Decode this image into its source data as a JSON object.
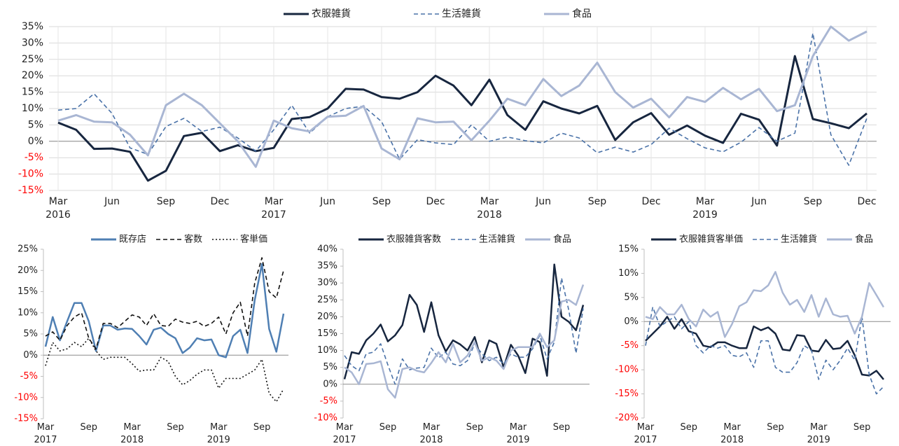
{
  "chart_data": [
    {
      "type": "line",
      "categories": [
        "Mar 2016",
        null,
        null,
        "Jun",
        null,
        null,
        "Sep",
        null,
        null,
        "Dec",
        null,
        null,
        "Mar 2017",
        null,
        null,
        "Jun",
        null,
        null,
        "Sep",
        null,
        null,
        "Dec",
        null,
        null,
        "Mar 2018",
        null,
        null,
        "Jun",
        null,
        null,
        "Sep",
        null,
        null,
        "Dec",
        null,
        null,
        "Mar 2019",
        null,
        null,
        "Jun",
        null,
        null,
        "Sep",
        null,
        null,
        "Dec"
      ],
      "series": [
        {
          "name": "衣服雑貨",
          "color": "#17263f",
          "dash": "solid",
          "values": [
            5.7,
            3.5,
            -2.3,
            -2.2,
            -3.2,
            -12,
            -9,
            1.6,
            2.6,
            -3,
            -1.2,
            -3,
            -2,
            6.8,
            7.4,
            10,
            16,
            15.8,
            13.5,
            13,
            15,
            20,
            17,
            11,
            18.8,
            8,
            3.5,
            12.2,
            10,
            8.5,
            10.8,
            0.4,
            5.8,
            8.6,
            2,
            4.8,
            1.7,
            -0.5,
            8.4,
            6.6,
            -1.3,
            26,
            6.8,
            5.5,
            4,
            8.5
          ]
        },
        {
          "name": "生活雑貨",
          "color": "#4a72a8",
          "dash": "dashed",
          "values": [
            9.5,
            10,
            14.5,
            8.5,
            -2,
            -4,
            4.5,
            7,
            3,
            4.3,
            1,
            -3,
            3.5,
            11,
            2.5,
            7.5,
            10,
            10.7,
            6,
            -5.5,
            0.5,
            -0.5,
            -1,
            5,
            0,
            1.3,
            0.2,
            -0.5,
            2.5,
            1,
            -3.5,
            -1.8,
            -3.3,
            -1,
            4,
            0.8,
            -2,
            -3.2,
            -0.3,
            4.2,
            0,
            2.5,
            33,
            2,
            -7.3,
            7
          ]
        },
        {
          "name": "食品",
          "color": "#a9b6d3",
          "dash": "solid",
          "values": [
            6.3,
            8,
            6,
            5.8,
            2,
            -4.3,
            11,
            14.5,
            11,
            5.5,
            0,
            -7.8,
            6.3,
            4,
            3,
            7.5,
            7.8,
            10.8,
            -2.2,
            -5.5,
            7,
            5.8,
            6,
            0.3,
            6.3,
            13,
            11,
            19,
            13.8,
            17,
            24,
            15,
            10.3,
            13,
            7.3,
            13.5,
            12,
            16.3,
            12.8,
            16,
            9.2,
            11,
            26,
            35,
            30.7,
            33.5
          ]
        }
      ],
      "ylim": [
        -15,
        35
      ],
      "yticks": [
        {
          "value": -15,
          "label": "-15%"
        },
        {
          "value": -10,
          "label": "-10%"
        },
        {
          "value": -5,
          "label": "-5%"
        },
        {
          "value": 0,
          "label": "0%"
        },
        {
          "value": 5,
          "label": "5%"
        },
        {
          "value": 10,
          "label": "10%"
        },
        {
          "value": 15,
          "label": "15%"
        },
        {
          "value": 20,
          "label": "20%"
        },
        {
          "value": 25,
          "label": "25%"
        },
        {
          "value": 30,
          "label": "30%"
        },
        {
          "value": 35,
          "label": "35%"
        }
      ],
      "grid": true,
      "legend": "top",
      "negative_tick_color": "#ff0000"
    },
    {
      "type": "line",
      "categories": [
        "Mar 2017",
        null,
        null,
        null,
        null,
        null,
        "Sep",
        null,
        null,
        null,
        null,
        null,
        "Mar 2018",
        null,
        null,
        null,
        null,
        null,
        "Sep",
        null,
        null,
        null,
        null,
        null,
        "Mar 2019",
        null,
        null,
        null,
        null,
        null,
        "Sep",
        null,
        null,
        null
      ],
      "series": [
        {
          "name": "既存店",
          "color": "#4f7fb3",
          "dash": "solid",
          "values": [
            2,
            9,
            3.5,
            8,
            12.3,
            12.3,
            8,
            1,
            7,
            7,
            6,
            6.3,
            6.2,
            4.5,
            2.5,
            6,
            6.5,
            5,
            4,
            0.5,
            1.8,
            4,
            3.5,
            3.7,
            0,
            -0.5,
            4.5,
            6,
            0.5,
            13,
            21.5,
            6.2,
            0.8,
            9.8
          ]
        },
        {
          "name": "客数",
          "color": "#111111",
          "dash": "dashed",
          "values": [
            4.5,
            5.5,
            3.5,
            7,
            9,
            10,
            4,
            1.5,
            7.5,
            7.5,
            6.5,
            8,
            9.5,
            9,
            7,
            9.8,
            7,
            6.8,
            8.5,
            7.8,
            7.5,
            8,
            6.8,
            7.5,
            9,
            5,
            10,
            12.5,
            4.5,
            17,
            23,
            15,
            13.5,
            20
          ]
        },
        {
          "name": "客単価",
          "color": "#111111",
          "dash": "dotted",
          "values": [
            -2.5,
            3,
            1,
            1.5,
            3,
            2,
            4,
            1,
            -1,
            -0.5,
            -0.5,
            -0.5,
            -2,
            -3.8,
            -3.5,
            -3.5,
            -0.5,
            -1.5,
            -5,
            -7,
            -6,
            -4.5,
            -3.5,
            -3.5,
            -7.8,
            -5.5,
            -5.5,
            -5.5,
            -4.5,
            -3.5,
            -1,
            -9,
            -11,
            -8
          ]
        }
      ],
      "ylim": [
        -15,
        25
      ],
      "yticks": [
        {
          "value": -15,
          "label": "-15%"
        },
        {
          "value": -10,
          "label": "-10%"
        },
        {
          "value": -5,
          "label": "-5%"
        },
        {
          "value": 0,
          "label": "0%"
        },
        {
          "value": 5,
          "label": "5%"
        },
        {
          "value": 10,
          "label": "10%"
        },
        {
          "value": 15,
          "label": "15%"
        },
        {
          "value": 20,
          "label": "20%"
        },
        {
          "value": 25,
          "label": "25%"
        }
      ],
      "grid": false,
      "legend": "top-right",
      "negative_tick_color": "#ff0000"
    },
    {
      "type": "line",
      "categories": [
        "Mar 2017",
        null,
        null,
        null,
        null,
        null,
        "Sep",
        null,
        null,
        null,
        null,
        null,
        "Mar 2018",
        null,
        null,
        null,
        null,
        null,
        "Sep",
        null,
        null,
        null,
        null,
        null,
        "Mar 2019",
        null,
        null,
        null,
        null,
        null,
        "Sep",
        null,
        null,
        null
      ],
      "series": [
        {
          "name": "衣服雑貨客数",
          "color": "#17263f",
          "dash": "solid",
          "values": [
            1.5,
            9.5,
            9,
            13,
            15,
            17.7,
            12.7,
            14.5,
            17.5,
            26.5,
            23.5,
            15.5,
            24.3,
            14.5,
            9.7,
            13,
            11.8,
            10,
            14,
            6.5,
            13,
            12,
            5,
            11.7,
            8.5,
            3.3,
            13.5,
            12.5,
            2.5,
            35.5,
            20,
            18.5,
            16,
            23.5
          ]
        },
        {
          "name": "生活雑貨",
          "color": "#4a72a8",
          "dash": "dashed",
          "values": [
            8.5,
            5.5,
            4,
            9,
            9.5,
            12,
            5.7,
            0,
            7.5,
            4.3,
            4.8,
            5,
            10.7,
            7.8,
            9.5,
            6,
            5.5,
            7,
            12,
            9,
            7,
            8,
            6,
            9,
            8,
            8,
            10.5,
            14.5,
            7.5,
            12.5,
            31.5,
            22,
            9.2,
            22.5
          ]
        },
        {
          "name": "食品",
          "color": "#a9b6d3",
          "dash": "solid",
          "values": [
            5,
            3.5,
            0,
            6,
            6.2,
            6.8,
            -1.5,
            -4,
            4.5,
            5,
            4,
            3.5,
            6.3,
            9.5,
            6.5,
            12,
            6.5,
            8.5,
            12.5,
            7,
            8,
            7,
            4.5,
            10,
            11,
            11,
            11,
            15,
            11,
            13,
            24.5,
            25,
            23.5,
            29.5
          ]
        }
      ],
      "ylim": [
        -10,
        40
      ],
      "yticks": [
        {
          "value": -10,
          "label": "-10%"
        },
        {
          "value": -5,
          "label": "-5%"
        },
        {
          "value": 0,
          "label": "0%"
        },
        {
          "value": 5,
          "label": "5%"
        },
        {
          "value": 10,
          "label": "10%"
        },
        {
          "value": 15,
          "label": "15%"
        },
        {
          "value": 20,
          "label": "20%"
        },
        {
          "value": 25,
          "label": "25%"
        },
        {
          "value": 30,
          "label": "30%"
        },
        {
          "value": 35,
          "label": "35%"
        },
        {
          "value": 40,
          "label": "40%"
        }
      ],
      "grid": false,
      "legend": "top-right",
      "negative_tick_color": "#ff0000"
    },
    {
      "type": "line",
      "categories": [
        "Mar 2017",
        null,
        null,
        null,
        null,
        null,
        "Sep",
        null,
        null,
        null,
        null,
        null,
        "Mar 2018",
        null,
        null,
        null,
        null,
        null,
        "Sep",
        null,
        null,
        null,
        null,
        null,
        "Mar 2019",
        null,
        null,
        null,
        null,
        null,
        "Sep",
        null,
        null,
        null
      ],
      "series": [
        {
          "name": "衣服雑貨客単価",
          "color": "#17263f",
          "dash": "solid",
          "values": [
            -4,
            -2.5,
            -1,
            1,
            -1.5,
            0.5,
            -2,
            -2.5,
            -5,
            -5.3,
            -4.3,
            -4.3,
            -5,
            -5.5,
            -5.5,
            -1,
            -1.8,
            -1.2,
            -2.5,
            -5.8,
            -6,
            -2.8,
            -3,
            -6,
            -6.2,
            -3.8,
            -5.7,
            -5.5,
            -4,
            -7,
            -11,
            -11.2,
            -10.2,
            -12
          ]
        },
        {
          "name": "生活雑貨",
          "color": "#4a72a8",
          "dash": "dashed",
          "values": [
            -5,
            3,
            -1,
            0,
            1,
            -1.5,
            0,
            -5,
            -6.5,
            -5,
            -5.5,
            -5,
            -7,
            -7.3,
            -6.5,
            -9.5,
            -4,
            -4,
            -9.5,
            -10.5,
            -10.5,
            -8.5,
            -5,
            -6,
            -12,
            -8,
            -10,
            -8,
            -5.5,
            -8,
            1,
            -11,
            -15,
            -13.5
          ]
        },
        {
          "name": "食品",
          "color": "#a9b6d3",
          "dash": "solid",
          "values": [
            1,
            0.5,
            3,
            1.5,
            1.5,
            3.5,
            0.5,
            -1,
            2.5,
            1,
            2,
            -3.2,
            -0.5,
            3.2,
            4,
            6.5,
            6.3,
            7.5,
            10.3,
            6,
            3.5,
            4.5,
            2,
            5.5,
            1,
            4.8,
            1.5,
            1,
            1.2,
            -2.5,
            1,
            8,
            5.5,
            3
          ]
        }
      ],
      "ylim": [
        -20,
        15
      ],
      "yticks": [
        {
          "value": -20,
          "label": "-20%"
        },
        {
          "value": -15,
          "label": "-15%"
        },
        {
          "value": -10,
          "label": "-10%"
        },
        {
          "value": -5,
          "label": "-5%"
        },
        {
          "value": 0,
          "label": "0%"
        },
        {
          "value": 5,
          "label": "5%"
        },
        {
          "value": 10,
          "label": "10%"
        },
        {
          "value": 15,
          "label": "15%"
        }
      ],
      "grid": false,
      "legend": "top-right",
      "negative_tick_color": "#ff0000"
    }
  ]
}
